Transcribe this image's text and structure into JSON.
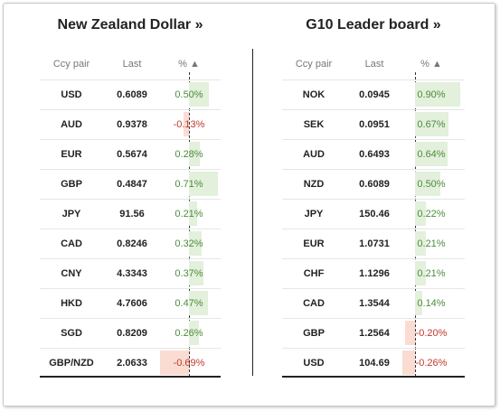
{
  "left": {
    "title": "New Zealand Dollar »",
    "headers": {
      "ccy": "Ccy pair",
      "last": "Last",
      "pct": "% ▲"
    },
    "rows": [
      {
        "ccy": "USD",
        "last": "0.6089",
        "pct": "0.50%",
        "value": 0.5
      },
      {
        "ccy": "AUD",
        "last": "0.9378",
        "pct": "-0.13%",
        "value": -0.13
      },
      {
        "ccy": "EUR",
        "last": "0.5674",
        "pct": "0.28%",
        "value": 0.28
      },
      {
        "ccy": "GBP",
        "last": "0.4847",
        "pct": "0.71%",
        "value": 0.71
      },
      {
        "ccy": "JPY",
        "last": "91.56",
        "pct": "0.21%",
        "value": 0.21
      },
      {
        "ccy": "CAD",
        "last": "0.8246",
        "pct": "0.32%",
        "value": 0.32
      },
      {
        "ccy": "CNY",
        "last": "4.3343",
        "pct": "0.37%",
        "value": 0.37
      },
      {
        "ccy": "HKD",
        "last": "4.7606",
        "pct": "0.47%",
        "value": 0.47
      },
      {
        "ccy": "SGD",
        "last": "0.8209",
        "pct": "0.26%",
        "value": 0.26
      },
      {
        "ccy": "GBP/NZD",
        "last": "2.0633",
        "pct": "-0.69%",
        "value": -0.69
      }
    ]
  },
  "right": {
    "title": "G10 Leader board »",
    "headers": {
      "ccy": "Ccy pair",
      "last": "Last",
      "pct": "% ▲"
    },
    "rows": [
      {
        "ccy": "NOK",
        "last": "0.0945",
        "pct": "0.90%",
        "value": 0.9
      },
      {
        "ccy": "SEK",
        "last": "0.0951",
        "pct": "0.67%",
        "value": 0.67
      },
      {
        "ccy": "AUD",
        "last": "0.6493",
        "pct": "0.64%",
        "value": 0.64
      },
      {
        "ccy": "NZD",
        "last": "0.6089",
        "pct": "0.50%",
        "value": 0.5
      },
      {
        "ccy": "JPY",
        "last": "150.46",
        "pct": "0.22%",
        "value": 0.22
      },
      {
        "ccy": "EUR",
        "last": "1.0731",
        "pct": "0.21%",
        "value": 0.21
      },
      {
        "ccy": "CHF",
        "last": "1.1296",
        "pct": "0.21%",
        "value": 0.21
      },
      {
        "ccy": "CAD",
        "last": "1.3544",
        "pct": "0.14%",
        "value": 0.14
      },
      {
        "ccy": "GBP",
        "last": "1.2564",
        "pct": "-0.20%",
        "value": -0.2
      },
      {
        "ccy": "USD",
        "last": "104.69",
        "pct": "-0.26%",
        "value": -0.26
      }
    ]
  },
  "colors": {
    "positive_bar": "#e2f0dc",
    "negative_bar": "#fbdcd2",
    "positive_text": "#4c8c3a",
    "negative_text": "#c0392b"
  }
}
